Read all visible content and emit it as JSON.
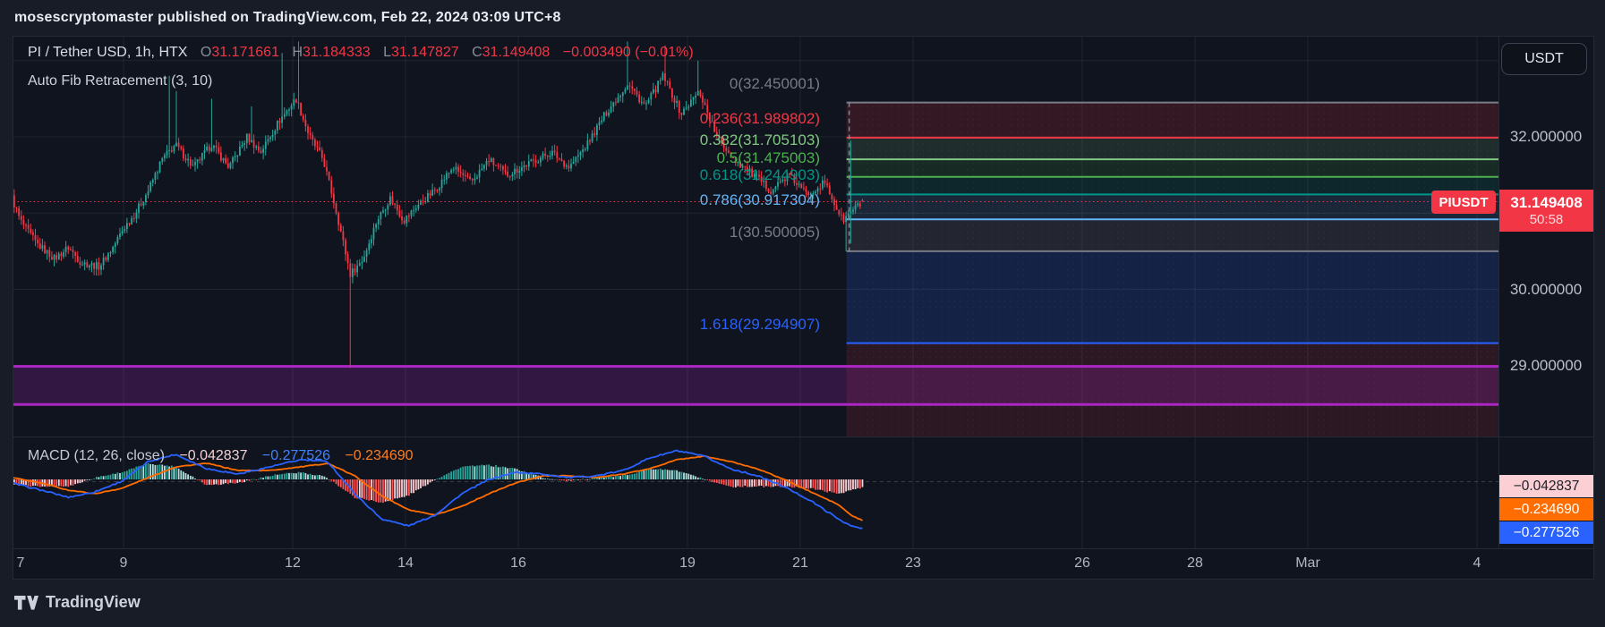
{
  "page": {
    "published_line": "mosescryptomaster published on TradingView.com, Feb 22, 2024 03:09 UTC+8"
  },
  "header": {
    "symbol_title": "PI / Tether USD, 1h, HTX",
    "ohlc": [
      {
        "label": "O",
        "value": "31.171661"
      },
      {
        "label": "H",
        "value": "31.184333"
      },
      {
        "label": "L",
        "value": "31.147827"
      },
      {
        "label": "C",
        "value": "31.149408"
      }
    ],
    "change": "−0.003490 (−0.01%)",
    "indicator": "Auto Fib Retracement (3, 10)"
  },
  "price_scale": {
    "currency_button": "USDT",
    "ticks": [
      {
        "text": "32.000000",
        "price": 32.0
      },
      {
        "text": "30.000000",
        "price": 30.0
      },
      {
        "text": "29.000000",
        "price": 29.0
      }
    ],
    "symbol_tag": "PIUSDT",
    "price_tag": {
      "value": "31.149408",
      "countdown": "50:58"
    }
  },
  "time_axis": {
    "labels": [
      {
        "text": "7",
        "day": 7
      },
      {
        "text": "9",
        "day": 9
      },
      {
        "text": "12",
        "day": 12
      },
      {
        "text": "14",
        "day": 14
      },
      {
        "text": "16",
        "day": 16
      },
      {
        "text": "19",
        "day": 19
      },
      {
        "text": "21",
        "day": 21
      },
      {
        "text": "23",
        "day": 23
      },
      {
        "text": "26",
        "day": 26
      },
      {
        "text": "28",
        "day": 28
      },
      {
        "text": "Mar",
        "day": 30
      },
      {
        "text": "4",
        "day": 33
      }
    ]
  },
  "macd_panel": {
    "legend_title": "MACD (12, 26, close)",
    "legend_values": [
      {
        "name": "histogram",
        "text": "−0.042837",
        "color": "#f2d0d3"
      },
      {
        "name": "macd",
        "text": "−0.277526",
        "color": "#3f83ff"
      },
      {
        "name": "signal",
        "text": "−0.234690",
        "color": "#ff7d1a"
      }
    ],
    "value_tags": [
      {
        "name": "histogram",
        "text": "−0.042837",
        "bg": "#fbcfd4",
        "fg": "#1b1f2a",
        "y": 490
      },
      {
        "name": "signal",
        "text": "−0.234690",
        "bg": "#ff6d00",
        "fg": "#ffffff",
        "y": 516
      },
      {
        "name": "macd",
        "text": "−0.277526",
        "bg": "#2962ff",
        "fg": "#ffffff",
        "y": 542
      }
    ]
  },
  "footer": {
    "brand": "TradingView"
  },
  "colors": {
    "up": "#26a69a",
    "down": "#f23645",
    "accent_red": "#f23645",
    "macd_line": "#2962ff",
    "signal_line": "#ff6d00",
    "hist_grow_above": "#26a69a",
    "hist_fall_above": "#b2dfdb",
    "hist_rise_below": "#ffcdd2",
    "hist_fall_below": "#ff5252",
    "channel": "#ab26c2",
    "grid": "rgba(134,139,151,0.14)"
  },
  "chart_data": {
    "type": "candlestick",
    "title": "PI / Tether USD, 1h, HTX",
    "symbol": "PIUSDT",
    "exchange": "HTX",
    "interval": "1h",
    "current_bar": {
      "open": 31.171661,
      "high": 31.184333,
      "low": 31.147827,
      "close": 31.149408,
      "change": -0.00349,
      "change_pct": -0.01
    },
    "ylim": [
      28.1,
      33.3
    ],
    "y_ticks": [
      32.0,
      30.0,
      29.0
    ],
    "x_tick_days_feb": [
      7,
      9,
      12,
      14,
      16,
      19,
      21,
      23,
      26,
      28,
      30,
      33
    ],
    "grid": true,
    "price_path": [
      [
        7.02,
        31.2
      ],
      [
        7.17,
        30.9
      ],
      [
        7.46,
        30.6
      ],
      [
        7.78,
        30.4
      ],
      [
        8.02,
        30.55
      ],
      [
        8.25,
        30.35
      ],
      [
        8.57,
        30.3
      ],
      [
        8.81,
        30.55
      ],
      [
        9.0,
        30.8
      ],
      [
        9.21,
        31.0
      ],
      [
        9.44,
        31.3
      ],
      [
        9.68,
        31.7
      ],
      [
        9.92,
        31.9
      ],
      [
        10.24,
        31.6
      ],
      [
        10.56,
        31.9
      ],
      [
        10.87,
        31.6
      ],
      [
        11.19,
        32.0
      ],
      [
        11.43,
        31.8
      ],
      [
        11.75,
        32.2
      ],
      [
        12.06,
        32.5
      ],
      [
        12.3,
        32.0
      ],
      [
        12.54,
        31.7
      ],
      [
        12.78,
        31.0
      ],
      [
        13.02,
        30.2
      ],
      [
        13.25,
        30.4
      ],
      [
        13.49,
        30.9
      ],
      [
        13.73,
        31.2
      ],
      [
        13.97,
        30.9
      ],
      [
        14.21,
        31.1
      ],
      [
        14.52,
        31.3
      ],
      [
        14.84,
        31.6
      ],
      [
        15.16,
        31.4
      ],
      [
        15.48,
        31.7
      ],
      [
        15.79,
        31.5
      ],
      [
        16.19,
        31.65
      ],
      [
        16.59,
        31.8
      ],
      [
        16.9,
        31.6
      ],
      [
        17.22,
        31.9
      ],
      [
        17.54,
        32.3
      ],
      [
        17.94,
        32.7
      ],
      [
        18.25,
        32.4
      ],
      [
        18.57,
        32.8
      ],
      [
        18.89,
        32.3
      ],
      [
        19.21,
        32.6
      ],
      [
        19.52,
        32.0
      ],
      [
        19.84,
        31.7
      ],
      [
        20.16,
        31.5
      ],
      [
        20.48,
        31.3
      ],
      [
        20.79,
        31.5
      ],
      [
        21.11,
        31.25
      ],
      [
        21.43,
        31.4
      ],
      [
        21.75,
        30.9
      ],
      [
        21.94,
        31.05
      ],
      [
        22.13,
        31.149408
      ]
    ],
    "wick_events": [
      {
        "day": 9.8,
        "high": 32.8
      },
      {
        "day": 9.95,
        "high": 32.6
      },
      {
        "day": 10.55,
        "high": 32.5
      },
      {
        "day": 11.25,
        "high": 32.4
      },
      {
        "day": 11.8,
        "high": 33.1
      },
      {
        "day": 12.1,
        "high": 33.25
      },
      {
        "day": 13.02,
        "low": 28.97
      },
      {
        "day": 17.95,
        "high": 33.25
      },
      {
        "day": 18.6,
        "high": 33.2
      },
      {
        "day": 19.2,
        "high": 33.0
      },
      {
        "day": 21.8,
        "low": 30.5
      },
      {
        "day": 21.9,
        "high": 31.95,
        "low": 30.6
      }
    ],
    "fib_retracement": {
      "name": "Auto Fib Retracement (3, 10)",
      "start_day": 21.82,
      "levels": [
        {
          "level": "0",
          "price": 32.450001,
          "text": "0(32.450001)",
          "color": "#787b86"
        },
        {
          "level": "0.236",
          "price": 31.989802,
          "text": "0.236(31.989802)",
          "color": "#f23645"
        },
        {
          "level": "0.382",
          "price": 31.705103,
          "text": "0.382(31.705103)",
          "color": "#81c784"
        },
        {
          "level": "0.5",
          "price": 31.475003,
          "text": "0.5(31.475003)",
          "color": "#4caf50"
        },
        {
          "level": "0.618",
          "price": 31.244903,
          "text": "0.618(31.244903)",
          "color": "#009688"
        },
        {
          "level": "0.786",
          "price": 30.917304,
          "text": "0.786(30.917304)",
          "color": "#64b5f6"
        },
        {
          "level": "1",
          "price": 30.500005,
          "text": "1(30.500005)",
          "color": "#787b86"
        },
        {
          "level": "1.618",
          "price": 29.294907,
          "text": "1.618(29.294907)",
          "color": "#2962ff"
        }
      ]
    },
    "price_channel": {
      "top_price": 28.99,
      "bottom_price": 28.49,
      "color": "#ab26c2"
    },
    "macd": {
      "params": [
        12,
        26,
        "close"
      ],
      "current": {
        "macd": -0.277526,
        "signal": -0.23469,
        "histogram": -0.042837
      },
      "path": [
        [
          7.02,
          -0.02,
          0.01
        ],
        [
          7.54,
          -0.06,
          -0.02
        ],
        [
          8.02,
          -0.1,
          -0.06
        ],
        [
          8.49,
          -0.07,
          -0.08
        ],
        [
          8.97,
          -0.01,
          -0.05
        ],
        [
          9.44,
          0.1,
          0.01
        ],
        [
          9.92,
          0.14,
          0.07
        ],
        [
          10.48,
          0.06,
          0.09
        ],
        [
          11.03,
          0.03,
          0.05
        ],
        [
          11.59,
          0.07,
          0.05
        ],
        [
          12.14,
          0.11,
          0.07
        ],
        [
          12.62,
          0.1,
          0.09
        ],
        [
          13.1,
          -0.08,
          0.02
        ],
        [
          13.57,
          -0.22,
          -0.09
        ],
        [
          14.05,
          -0.26,
          -0.17
        ],
        [
          14.52,
          -0.2,
          -0.2
        ],
        [
          15.0,
          -0.08,
          -0.15
        ],
        [
          15.48,
          0.0,
          -0.08
        ],
        [
          15.95,
          0.04,
          -0.02
        ],
        [
          16.43,
          0.03,
          0.02
        ],
        [
          16.9,
          0.01,
          0.02
        ],
        [
          17.38,
          0.02,
          0.01
        ],
        [
          17.86,
          0.05,
          0.03
        ],
        [
          18.33,
          0.12,
          0.06
        ],
        [
          18.81,
          0.16,
          0.11
        ],
        [
          19.29,
          0.13,
          0.13
        ],
        [
          19.76,
          0.06,
          0.1
        ],
        [
          20.24,
          0.02,
          0.06
        ],
        [
          20.71,
          -0.04,
          0.0
        ],
        [
          21.19,
          -0.12,
          -0.07
        ],
        [
          21.67,
          -0.22,
          -0.14
        ],
        [
          21.9,
          -0.26,
          -0.2
        ],
        [
          22.13,
          -0.277526,
          -0.23469
        ]
      ]
    }
  }
}
